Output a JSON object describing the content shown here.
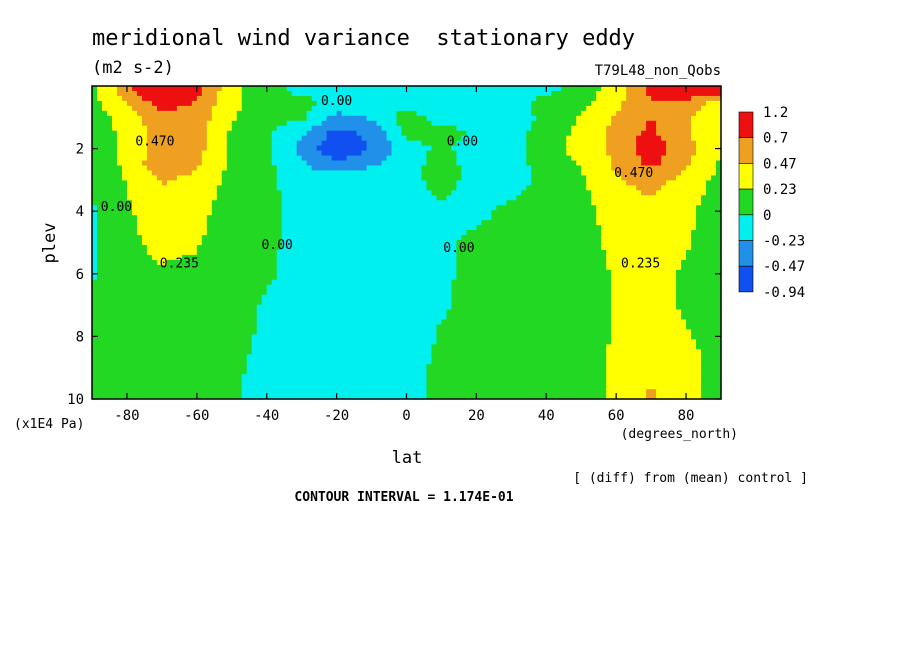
{
  "chart_data": {
    "type": "heatmap",
    "title": "meridional wind variance  stationary eddy",
    "units": "(m2 s-2)",
    "experiment": "T79L48_non_Qobs",
    "xlabel": "lat",
    "x_units": "(degrees_north)",
    "ylabel": "plev",
    "y_units": "(x1E4 Pa)",
    "xlim": [
      -90,
      90
    ],
    "ylim": [
      10,
      0
    ],
    "x_ticks": [
      -80,
      -60,
      -40,
      -20,
      0,
      20,
      40,
      60,
      80
    ],
    "x_tick_labels": [
      "-80",
      "-60",
      "-40",
      "-20",
      "0",
      "20",
      "40",
      "60",
      "80"
    ],
    "y_ticks": [
      2,
      4,
      6,
      8,
      10
    ],
    "y_tick_labels": [
      "2",
      "4",
      "6",
      "8",
      "10"
    ],
    "colorbar": {
      "labels": [
        "1.2",
        "0.7",
        "0.47",
        "0.23",
        "0",
        "-0.23",
        "-0.47",
        "-0.94"
      ],
      "colors": [
        "#ee1010",
        "#f0a020",
        "#ffff00",
        "#22d822",
        "#00f0f0",
        "#2090e8",
        "#1050f0"
      ]
    },
    "contour_labels": [
      {
        "text": "0.470",
        "lat": -72,
        "plev": 1.9
      },
      {
        "text": "0.235",
        "lat": -65,
        "plev": 5.8
      },
      {
        "text": "0.00",
        "lat": -83,
        "plev": 4.0
      },
      {
        "text": "0.00",
        "lat": -37,
        "plev": 5.2
      },
      {
        "text": "0.00",
        "lat": -20,
        "plev": 0.6
      },
      {
        "text": "0.00",
        "lat": 16,
        "plev": 1.9
      },
      {
        "text": "0.00",
        "lat": 15,
        "plev": 5.3
      },
      {
        "text": "0.470",
        "lat": 65,
        "plev": 2.9
      },
      {
        "text": "0.235",
        "lat": 67,
        "plev": 5.8
      }
    ],
    "field": {
      "lat": [
        -90,
        -80,
        -70,
        -60,
        -50,
        -40,
        -30,
        -20,
        -10,
        0,
        10,
        20,
        30,
        40,
        50,
        60,
        70,
        80,
        90
      ],
      "plev": [
        0,
        0.5,
        1,
        1.5,
        2,
        2.5,
        3,
        4,
        5,
        6,
        7,
        8,
        9,
        10
      ],
      "values": [
        [
          0.2,
          0.6,
          1.3,
          0.8,
          0.3,
          0.1,
          -0.1,
          -0.1,
          -0.1,
          -0.1,
          -0.1,
          -0.1,
          -0.1,
          -0.1,
          0.1,
          0.3,
          0.8,
          1.3,
          1.0
        ],
        [
          0.15,
          0.5,
          0.8,
          0.7,
          0.3,
          0.1,
          0.05,
          -0.05,
          -0.1,
          -0.1,
          -0.1,
          -0.05,
          -0.05,
          0.05,
          0.15,
          0.4,
          0.7,
          0.6,
          0.4
        ],
        [
          0.1,
          0.35,
          0.65,
          0.6,
          0.25,
          0.1,
          0.05,
          -0.3,
          -0.2,
          0.1,
          -0.1,
          -0.1,
          -0.1,
          0.05,
          0.25,
          0.5,
          0.7,
          0.5,
          0.3
        ],
        [
          0.1,
          0.3,
          0.6,
          0.6,
          0.2,
          0.05,
          -0.2,
          -0.55,
          -0.4,
          0.05,
          0.1,
          -0.05,
          -0.1,
          0.1,
          0.3,
          0.55,
          0.75,
          0.5,
          0.25
        ],
        [
          0.05,
          0.3,
          0.6,
          0.55,
          0.2,
          0.05,
          -0.3,
          -0.7,
          -0.45,
          -0.1,
          0.05,
          -0.1,
          -0.1,
          0.15,
          0.3,
          0.55,
          0.85,
          0.55,
          0.25
        ],
        [
          0.0,
          0.3,
          0.65,
          0.5,
          0.18,
          0.05,
          -0.2,
          -0.4,
          -0.25,
          -0.1,
          0.1,
          -0.1,
          -0.1,
          0.1,
          0.25,
          0.5,
          0.75,
          0.5,
          0.2
        ],
        [
          0.0,
          0.25,
          0.5,
          0.4,
          0.15,
          0.05,
          -0.1,
          -0.1,
          -0.1,
          -0.1,
          0.1,
          -0.1,
          -0.1,
          0.05,
          0.2,
          0.45,
          0.55,
          0.4,
          0.15
        ],
        [
          -0.02,
          0.2,
          0.35,
          0.3,
          0.12,
          0.04,
          -0.05,
          -0.1,
          -0.1,
          -0.1,
          -0.05,
          -0.05,
          0.05,
          0.1,
          0.15,
          0.35,
          0.4,
          0.3,
          0.05
        ],
        [
          -0.02,
          0.18,
          0.3,
          0.25,
          0.1,
          0.03,
          -0.05,
          -0.1,
          -0.1,
          -0.1,
          -0.05,
          0.05,
          0.05,
          0.08,
          0.12,
          0.3,
          0.35,
          0.25,
          0.1
        ],
        [
          -0.02,
          0.15,
          0.2,
          0.18,
          0.08,
          0.02,
          -0.05,
          -0.1,
          -0.1,
          -0.1,
          -0.03,
          0.05,
          0.05,
          0.08,
          0.12,
          0.25,
          0.3,
          0.2,
          0.15
        ],
        [
          0.05,
          0.12,
          0.15,
          0.14,
          0.07,
          -0.02,
          -0.05,
          -0.1,
          -0.1,
          -0.1,
          -0.02,
          0.05,
          0.05,
          0.08,
          0.12,
          0.25,
          0.3,
          0.2,
          0.12
        ],
        [
          0.05,
          0.12,
          0.14,
          0.12,
          0.05,
          -0.03,
          -0.05,
          -0.1,
          -0.1,
          -0.1,
          0.02,
          0.05,
          0.05,
          0.08,
          0.12,
          0.25,
          0.35,
          0.25,
          0.15
        ],
        [
          0.05,
          0.1,
          0.12,
          0.1,
          0.03,
          -0.05,
          -0.05,
          -0.1,
          -0.1,
          -0.05,
          0.03,
          0.05,
          0.05,
          0.08,
          0.12,
          0.28,
          0.45,
          0.3,
          0.15
        ],
        [
          0.05,
          0.1,
          0.1,
          0.08,
          0.02,
          -0.05,
          -0.05,
          -0.1,
          -0.1,
          -0.05,
          0.03,
          0.05,
          0.05,
          0.08,
          0.12,
          0.28,
          0.5,
          0.3,
          0.15
        ]
      ]
    }
  },
  "footer": {
    "diff_note": "[ (diff) from (mean) control ]",
    "contour_interval": "CONTOUR INTERVAL = 1.174E-01"
  }
}
